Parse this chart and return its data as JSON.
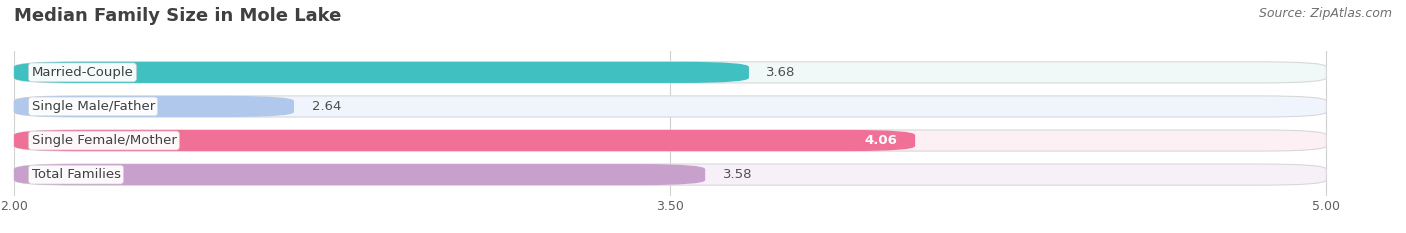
{
  "title": "Median Family Size in Mole Lake",
  "source": "Source: ZipAtlas.com",
  "categories": [
    "Married-Couple",
    "Single Male/Father",
    "Single Female/Mother",
    "Total Families"
  ],
  "values": [
    3.68,
    2.64,
    4.06,
    3.58
  ],
  "bar_colors": [
    "#40c0c0",
    "#b0c8ec",
    "#f07098",
    "#c8a0cc"
  ],
  "bar_bg_colors": [
    "#f0f8f8",
    "#f0f4fc",
    "#fdf0f4",
    "#f8f0f8"
  ],
  "value_inside": [
    false,
    false,
    true,
    false
  ],
  "xlim": [
    2.0,
    5.0
  ],
  "xticks": [
    2.0,
    3.5,
    5.0
  ],
  "xtick_labels": [
    "2.00",
    "3.50",
    "5.00"
  ],
  "bar_height": 0.62,
  "bar_gap": 1.0,
  "background_color": "#ffffff",
  "title_fontsize": 13,
  "label_fontsize": 9.5,
  "value_fontsize": 9.5,
  "source_fontsize": 9,
  "title_color": "#404040",
  "label_bg_color": "#ffffff"
}
